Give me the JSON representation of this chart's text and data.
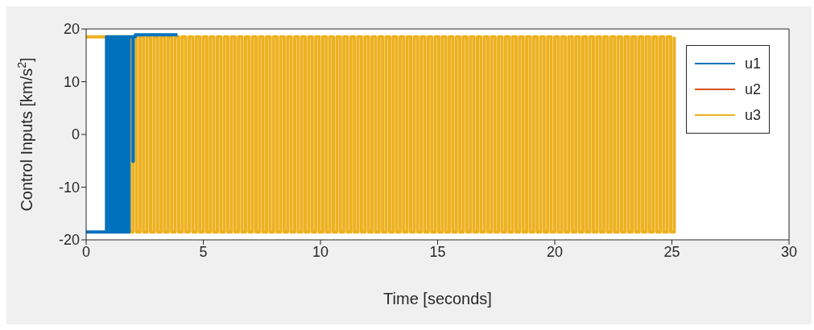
{
  "chart_data": {
    "type": "step",
    "xlabel": "Time [seconds]",
    "ylabel": "Control Inputs [km/s$^{2}$]",
    "xlim": [
      0,
      30
    ],
    "xticks": [
      0,
      5,
      10,
      15,
      20,
      25,
      30
    ],
    "ylim": [
      -20,
      20
    ],
    "yticks": [
      -20,
      -10,
      0,
      10,
      20
    ],
    "grid": false,
    "legend": "top right",
    "series": [
      {
        "name": "u1",
        "color": "#0072bd",
        "x": [
          0,
          0.87,
          0.91,
          0.95,
          0.99,
          1.03,
          1.07,
          1.11,
          1.15,
          1.19,
          1.23,
          1.27,
          1.31,
          1.35,
          1.39,
          1.43,
          1.47,
          1.51,
          1.55,
          1.59,
          1.63,
          1.67,
          1.71,
          1.75,
          1.79,
          1.83,
          1.99,
          2,
          2.01,
          2.1,
          3.9
        ],
        "values": [
          -18.5,
          18.5,
          -18.5,
          18.5,
          -18.5,
          18.5,
          -18.5,
          18.5,
          -18.5,
          18.5,
          -18.5,
          18.5,
          -18.5,
          18.5,
          -18.5,
          18.5,
          -18.5,
          18.5,
          -18.5,
          18.5,
          -18.5,
          18.5,
          -18.5,
          18.5,
          -18.5,
          18.5,
          18.5,
          -5.1,
          18.5,
          18.9,
          18.9
        ]
      },
      {
        "name": "u2",
        "color": "#d95319"
      },
      {
        "name": "u3",
        "color": "#edb120",
        "x": [
          0,
          1.85,
          2,
          2.15,
          2.3,
          2.45,
          2.6,
          2.75,
          2.9,
          3.05,
          3.2,
          3.35,
          3.5,
          3.65,
          3.8,
          3.95,
          4.1,
          4.25,
          4.4,
          4.55,
          4.7,
          4.85,
          5,
          5.15,
          5.3,
          5.45,
          5.6,
          5.75,
          5.9,
          6.05,
          6.2,
          6.35,
          6.5,
          6.65,
          6.8,
          6.95,
          7.1,
          7.25,
          7.4,
          7.55,
          7.7,
          7.85,
          8,
          8.15,
          8.3,
          8.45,
          8.6,
          8.75,
          8.9,
          9.05,
          9.2,
          9.35,
          9.5,
          9.65,
          9.8,
          9.95,
          10.1,
          10.25,
          10.4,
          10.55,
          10.7,
          10.85,
          11,
          11.15,
          11.3,
          11.45,
          11.6,
          11.75,
          11.9,
          12.05,
          12.2,
          12.35,
          12.5,
          12.65,
          12.8,
          12.95,
          13.1,
          13.25,
          13.4,
          13.55,
          13.7,
          13.85,
          14,
          14.15,
          14.3,
          14.45,
          14.6,
          14.75,
          14.9,
          15.05,
          15.2,
          15.35,
          15.5,
          15.65,
          15.8,
          15.95,
          16.1,
          16.25,
          16.4,
          16.55,
          16.7,
          16.85,
          17,
          17.15,
          17.3,
          17.45,
          17.6,
          17.75,
          17.9,
          18.05,
          18.2,
          18.35,
          18.5,
          18.65,
          18.8,
          18.95,
          19.1,
          19.25,
          19.4,
          19.55,
          19.7,
          19.85,
          20,
          20.15,
          20.3,
          20.45,
          20.6,
          20.75,
          20.9,
          21.05,
          21.2,
          21.35,
          21.5,
          21.65,
          21.8,
          21.95,
          22.1,
          22.25,
          22.4,
          22.55,
          22.7,
          22.85,
          23,
          23.15,
          23.3,
          23.45,
          23.6,
          23.75,
          23.9,
          24.05,
          24.2,
          24.35,
          24.5,
          24.65,
          24.8,
          24.95,
          25.1
        ],
        "values": [
          18.5,
          -18.5,
          18.5,
          -18.5,
          18.5,
          -18.5,
          18.5,
          -18.5,
          18.5,
          -18.5,
          18.5,
          -18.5,
          18.5,
          -18.5,
          18.5,
          -18.5,
          18.5,
          -18.5,
          18.5,
          -18.5,
          18.5,
          -18.5,
          18.5,
          -18.5,
          18.5,
          -18.5,
          18.5,
          -18.5,
          18.5,
          -18.5,
          18.5,
          -18.5,
          18.5,
          -18.5,
          18.5,
          -18.5,
          18.5,
          -18.5,
          18.5,
          -18.5,
          18.5,
          -18.5,
          18.5,
          -18.5,
          18.5,
          -18.5,
          18.5,
          -18.5,
          18.5,
          -18.5,
          18.5,
          -18.5,
          18.5,
          -18.5,
          18.5,
          -18.5,
          18.5,
          -18.5,
          18.5,
          -18.5,
          18.5,
          -18.5,
          18.5,
          -18.5,
          18.5,
          -18.5,
          18.5,
          -18.5,
          18.5,
          -18.5,
          18.5,
          -18.5,
          18.5,
          -18.5,
          18.5,
          -18.5,
          18.5,
          -18.5,
          18.5,
          -18.5,
          18.5,
          -18.5,
          18.5,
          -18.5,
          18.5,
          -18.5,
          18.5,
          -18.5,
          18.5,
          -18.5,
          18.5,
          -18.5,
          18.5,
          -18.5,
          18.5,
          -18.5,
          18.5,
          -18.5,
          18.5,
          -18.5,
          18.5,
          -18.5,
          18.5,
          -18.5,
          18.5,
          -18.5,
          18.5,
          -18.5,
          18.5,
          -18.5,
          18.5,
          -18.5,
          18.5,
          -18.5,
          18.5,
          -18.5,
          18.5,
          -18.5,
          18.5,
          -18.5,
          18.5,
          -18.5,
          18.5,
          -18.5,
          18.5,
          -18.5,
          18.5,
          -18.5,
          18.5,
          -18.5,
          18.5,
          -18.5,
          18.5,
          -18.5,
          18.5,
          -18.5,
          18.5,
          -18.5,
          18.5,
          -18.5,
          18.5,
          -18.5,
          18.5,
          -18.5,
          18.5,
          -18.5,
          18.5,
          -18.5,
          18.5,
          -18.5,
          18.5,
          -18.5,
          18.5,
          -18.5,
          18.5,
          -18.5,
          18.5
        ]
      }
    ]
  }
}
